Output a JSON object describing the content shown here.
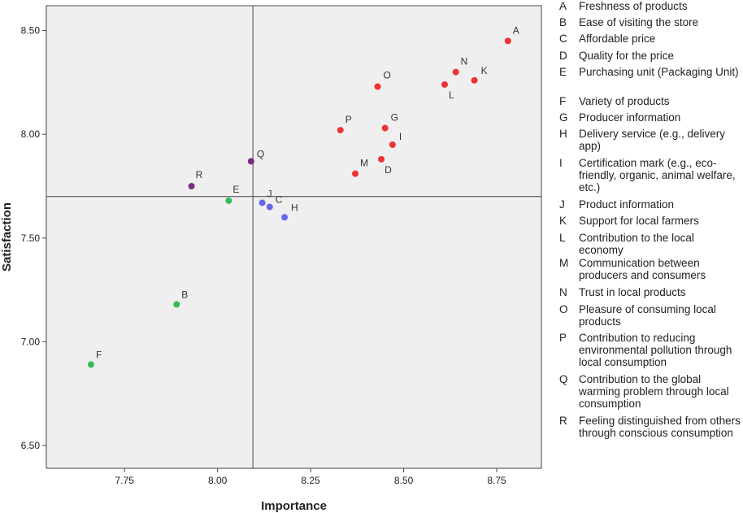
{
  "chart_data": {
    "type": "scatter",
    "title": "",
    "xlabel": "Importance",
    "ylabel": "Satisfaction",
    "xlim": [
      7.54,
      8.87
    ],
    "ylim": [
      6.39,
      8.62
    ],
    "x_ticks": [
      "7.75",
      "8.00",
      "8.25",
      "8.50",
      "8.75"
    ],
    "x_tick_values": [
      7.75,
      8.0,
      8.25,
      8.5,
      8.75
    ],
    "y_ticks": [
      "6.50",
      "7.00",
      "7.50",
      "8.00",
      "8.50"
    ],
    "y_tick_values": [
      6.5,
      7.0,
      7.5,
      8.0,
      8.5
    ],
    "reference_lines": {
      "x": 8.095,
      "y": 7.7
    },
    "grid": false,
    "legend_position": "right",
    "colors": {
      "red": "#ee3333",
      "blue": "#6666ee",
      "green": "#33bb55",
      "purple": "#7b2d82",
      "plot_background": "#efefef",
      "axis": "#444444"
    },
    "points": [
      {
        "label": "A",
        "x": 8.78,
        "y": 8.45,
        "color": "red"
      },
      {
        "label": "N",
        "x": 8.64,
        "y": 8.3,
        "color": "red"
      },
      {
        "label": "K",
        "x": 8.69,
        "y": 8.26,
        "color": "red"
      },
      {
        "label": "L",
        "x": 8.61,
        "y": 8.24,
        "color": "red"
      },
      {
        "label": "O",
        "x": 8.43,
        "y": 8.23,
        "color": "red"
      },
      {
        "label": "G",
        "x": 8.45,
        "y": 8.03,
        "color": "red"
      },
      {
        "label": "P",
        "x": 8.33,
        "y": 8.02,
        "color": "red"
      },
      {
        "label": "I",
        "x": 8.47,
        "y": 7.95,
        "color": "red"
      },
      {
        "label": "D",
        "x": 8.44,
        "y": 7.88,
        "color": "red"
      },
      {
        "label": "M",
        "x": 8.37,
        "y": 7.81,
        "color": "red"
      },
      {
        "label": "Q",
        "x": 8.09,
        "y": 7.87,
        "color": "purple"
      },
      {
        "label": "R",
        "x": 7.93,
        "y": 7.75,
        "color": "purple"
      },
      {
        "label": "E",
        "x": 8.03,
        "y": 7.68,
        "color": "green"
      },
      {
        "label": "J",
        "x": 8.12,
        "y": 7.67,
        "color": "blue"
      },
      {
        "label": "C",
        "x": 8.14,
        "y": 7.65,
        "color": "blue"
      },
      {
        "label": "H",
        "x": 8.18,
        "y": 7.6,
        "color": "blue"
      },
      {
        "label": "B",
        "x": 7.89,
        "y": 7.18,
        "color": "green"
      },
      {
        "label": "F",
        "x": 7.66,
        "y": 6.89,
        "color": "green"
      }
    ]
  },
  "legend": [
    {
      "key": "A",
      "text": "Freshness of products"
    },
    {
      "key": "B",
      "text": "Ease of visiting the store"
    },
    {
      "key": "C",
      "text": "Affordable price"
    },
    {
      "key": "D",
      "text": "Quality for the price"
    },
    {
      "key": "E",
      "text": "Purchasing unit (Packaging Unit)"
    },
    {
      "key": "F",
      "text": "Variety of products"
    },
    {
      "key": "G",
      "text": "Producer information"
    },
    {
      "key": "H",
      "text": "Delivery service (e.g., delivery app)"
    },
    {
      "key": "I",
      "text": "Certification mark (e.g., eco-friendly, organic, animal welfare, etc.)"
    },
    {
      "key": "J",
      "text": "Product information"
    },
    {
      "key": "K",
      "text": "Support for  local farmers"
    },
    {
      "key": "L",
      "text": "Contribution to the local economy"
    },
    {
      "key": "M",
      "text": "Communication between producers and consumers"
    },
    {
      "key": "N",
      "text": "Trust in local products"
    },
    {
      "key": "O",
      "text": "Pleasure of consuming local products"
    },
    {
      "key": "P",
      "text": "Contribution to reducing environmental pollution through local consumption"
    },
    {
      "key": "Q",
      "text": "Contribution to the global warming problem through local consumption"
    },
    {
      "key": "R",
      "text": "Feeling distinguished from others through conscious consumption"
    }
  ]
}
